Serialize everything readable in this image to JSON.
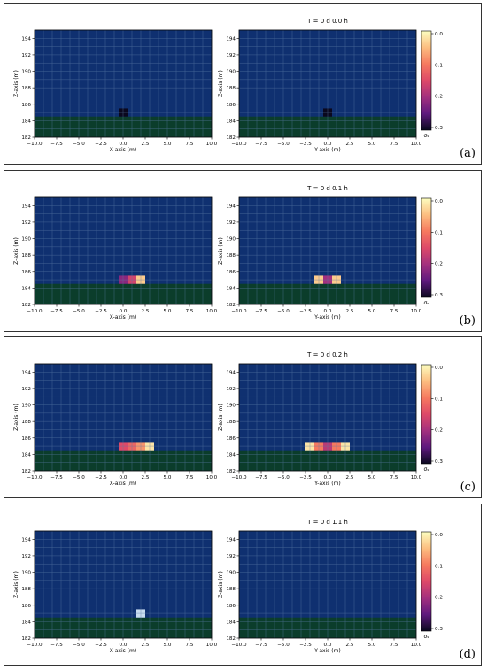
{
  "colors": {
    "water": "#0f3070",
    "ground": "#0b3d2b",
    "grid": "#5a7aa6",
    "frame": "#333333"
  },
  "colorbar": {
    "label": "σₛ",
    "ticks": [
      "0.0",
      "0.1",
      "0.2",
      "0.3"
    ],
    "colormap": "magma_r"
  },
  "chart_data": [
    {
      "panel": "(a)",
      "title": "T = 0 d  0.0 h",
      "type": "heatmap",
      "left": {
        "xlabel": "X-axis (m)",
        "ylabel": "Z-axis (m)",
        "xlim": [
          -10,
          10
        ],
        "ylim": [
          182,
          195
        ],
        "xticks": [
          "−10.0",
          "−7.5",
          "−5.0",
          "−2.5",
          "0.0",
          "2.5",
          "5.0",
          "7.5",
          "10.0"
        ],
        "yticks": [
          "182",
          "184",
          "186",
          "188",
          "190",
          "192",
          "194"
        ],
        "cells": [
          {
            "x": [
              -0.5,
              0.5
            ],
            "z": [
              184.5,
              185.5
            ],
            "sigma": 0.3
          }
        ]
      },
      "right": {
        "xlabel": "Y-axis (m)",
        "ylabel": "Z-axis (m)",
        "xlim": [
          -10,
          10
        ],
        "ylim": [
          182,
          195
        ],
        "xticks": [
          "−10.0",
          "−7.5",
          "−5.0",
          "−2.5",
          "0.0",
          "2.5",
          "5.0",
          "7.5",
          "10.0"
        ],
        "yticks": [
          "182",
          "184",
          "186",
          "188",
          "190",
          "192",
          "194"
        ],
        "cells": [
          {
            "x": [
              -0.5,
              0.5
            ],
            "z": [
              184.5,
              185.5
            ],
            "sigma": 0.3
          }
        ]
      },
      "ground_top_z": 184.5,
      "clim": [
        0,
        0.3
      ]
    },
    {
      "panel": "(b)",
      "title": "T = 0 d  0.1 h",
      "type": "heatmap",
      "left": {
        "xlabel": "X-axis (m)",
        "ylabel": "Z-axis (m)",
        "xlim": [
          -10,
          10
        ],
        "ylim": [
          182,
          195
        ],
        "xticks": [
          "−10.0",
          "−7.5",
          "−5.0",
          "−2.5",
          "0.0",
          "2.5",
          "5.0",
          "7.5",
          "10.0"
        ],
        "yticks": [
          "182",
          "184",
          "186",
          "188",
          "190",
          "192",
          "194"
        ],
        "cells": [
          {
            "x": [
              -0.5,
              0.5
            ],
            "z": [
              184.5,
              185.5
            ],
            "sigma": 0.22
          },
          {
            "x": [
              0.5,
              1.5
            ],
            "z": [
              184.5,
              185.5
            ],
            "sigma": 0.16
          },
          {
            "x": [
              1.5,
              2.5
            ],
            "z": [
              184.5,
              185.5
            ],
            "sigma": 0.04
          }
        ]
      },
      "right": {
        "xlabel": "Y-axis (m)",
        "ylabel": "Z-axis (m)",
        "xlim": [
          -10,
          10
        ],
        "ylim": [
          182,
          195
        ],
        "xticks": [
          "−10.0",
          "−7.5",
          "−5.0",
          "−2.5",
          "0.0",
          "2.5",
          "5.0",
          "7.5",
          "10.0"
        ],
        "yticks": [
          "182",
          "184",
          "186",
          "188",
          "190",
          "192",
          "194"
        ],
        "cells": [
          {
            "x": [
              -1.5,
              -0.5
            ],
            "z": [
              184.5,
              185.5
            ],
            "sigma": 0.04
          },
          {
            "x": [
              -0.5,
              0.5
            ],
            "z": [
              184.5,
              185.5
            ],
            "sigma": 0.2
          },
          {
            "x": [
              0.5,
              1.5
            ],
            "z": [
              184.5,
              185.5
            ],
            "sigma": 0.04
          }
        ]
      },
      "ground_top_z": 184.5,
      "clim": [
        0,
        0.3
      ]
    },
    {
      "panel": "(c)",
      "title": "T = 0 d  0.2 h",
      "type": "heatmap",
      "left": {
        "xlabel": "X-axis (m)",
        "ylabel": "Z-axis (m)",
        "xlim": [
          -10,
          10
        ],
        "ylim": [
          182,
          195
        ],
        "xticks": [
          "−10.0",
          "−7.5",
          "−5.0",
          "−2.5",
          "0.0",
          "2.5",
          "5.0",
          "7.5",
          "10.0"
        ],
        "yticks": [
          "182",
          "184",
          "186",
          "188",
          "190",
          "192",
          "194"
        ],
        "cells": [
          {
            "x": [
              -0.5,
              0.5
            ],
            "z": [
              184.5,
              185.5
            ],
            "sigma": 0.15
          },
          {
            "x": [
              0.5,
              1.5
            ],
            "z": [
              184.5,
              185.5
            ],
            "sigma": 0.12
          },
          {
            "x": [
              1.5,
              2.5
            ],
            "z": [
              184.5,
              185.5
            ],
            "sigma": 0.08
          },
          {
            "x": [
              2.5,
              3.5
            ],
            "z": [
              184.5,
              185.5
            ],
            "sigma": 0.02
          }
        ]
      },
      "right": {
        "xlabel": "Y-axis (m)",
        "ylabel": "Z-axis (m)",
        "xlim": [
          -10,
          10
        ],
        "ylim": [
          182,
          195
        ],
        "xticks": [
          "−10.0",
          "−7.5",
          "−5.0",
          "−2.5",
          "0.0",
          "2.5",
          "5.0",
          "7.5",
          "10.0"
        ],
        "yticks": [
          "182",
          "184",
          "186",
          "188",
          "190",
          "192",
          "194"
        ],
        "cells": [
          {
            "x": [
              -2.5,
              -1.5
            ],
            "z": [
              184.5,
              185.5
            ],
            "sigma": 0.02
          },
          {
            "x": [
              -1.5,
              -0.5
            ],
            "z": [
              184.5,
              185.5
            ],
            "sigma": 0.1
          },
          {
            "x": [
              -0.5,
              0.5
            ],
            "z": [
              184.5,
              185.5
            ],
            "sigma": 0.18
          },
          {
            "x": [
              0.5,
              1.5
            ],
            "z": [
              184.5,
              185.5
            ],
            "sigma": 0.1
          },
          {
            "x": [
              1.5,
              2.5
            ],
            "z": [
              184.5,
              185.5
            ],
            "sigma": 0.02
          }
        ]
      },
      "ground_top_z": 184.5,
      "clim": [
        0,
        0.3
      ]
    },
    {
      "panel": "(d)",
      "title": "T = 0 d  1.1 h",
      "type": "heatmap",
      "left": {
        "xlabel": "X-axis (m)",
        "ylabel": "Z-axis (m)",
        "xlim": [
          -10,
          10
        ],
        "ylim": [
          182,
          195
        ],
        "xticks": [
          "−10.0",
          "−7.5",
          "−5.0",
          "−2.5",
          "0.0",
          "2.5",
          "5.0",
          "7.5",
          "10.0"
        ],
        "yticks": [
          "182",
          "184",
          "186",
          "188",
          "190",
          "192",
          "194"
        ],
        "cells": [
          {
            "x": [
              1.5,
              2.5
            ],
            "z": [
              184.5,
              185.5
            ],
            "sigma": 0.3,
            "color": "#c8dcf0"
          }
        ]
      },
      "right": {
        "xlabel": "Y-axis (m)",
        "ylabel": "Z-axis (m)",
        "xlim": [
          -10,
          10
        ],
        "ylim": [
          182,
          195
        ],
        "xticks": [
          "−10.0",
          "−7.5",
          "−5.0",
          "−2.5",
          "0.0",
          "2.5",
          "5.0",
          "7.5",
          "10.0"
        ],
        "yticks": [
          "182",
          "184",
          "186",
          "188",
          "190",
          "192",
          "194"
        ],
        "cells": []
      },
      "ground_top_z": 184.5,
      "clim": [
        0,
        0.3
      ]
    }
  ]
}
